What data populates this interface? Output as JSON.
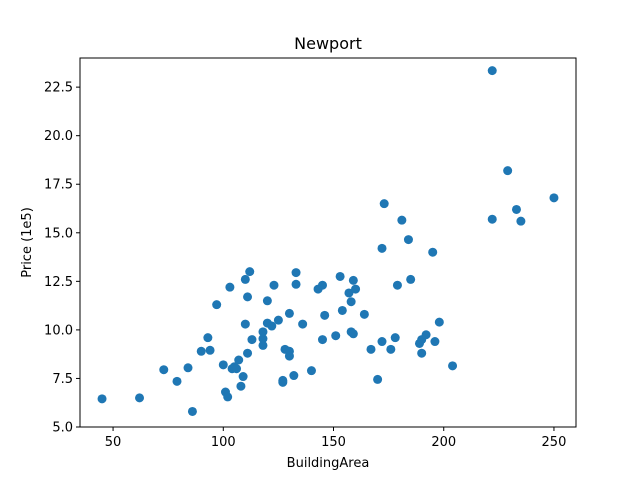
{
  "chart_data": {
    "type": "scatter",
    "title": "Newport",
    "xlabel": "BuildingArea",
    "ylabel": "Price (1e5)",
    "xlim": [
      35,
      260
    ],
    "ylim": [
      5.0,
      24.0
    ],
    "x_ticks": [
      50,
      100,
      150,
      200,
      250
    ],
    "x_tick_labels": [
      "50",
      "100",
      "150",
      "200",
      "250"
    ],
    "y_ticks": [
      5.0,
      7.5,
      10.0,
      12.5,
      15.0,
      17.5,
      20.0,
      22.5
    ],
    "y_tick_labels": [
      "5.0",
      "7.5",
      "10.0",
      "12.5",
      "15.0",
      "17.5",
      "20.0",
      "22.5"
    ],
    "grid": false,
    "marker_color": "#1f77b4",
    "series": [
      {
        "points": [
          [
            45,
            6.45
          ],
          [
            62,
            6.5
          ],
          [
            73,
            7.95
          ],
          [
            79,
            7.35
          ],
          [
            84,
            8.05
          ],
          [
            86,
            5.8
          ],
          [
            90,
            8.9
          ],
          [
            93,
            9.6
          ],
          [
            94,
            8.95
          ],
          [
            97,
            11.3
          ],
          [
            100,
            8.2
          ],
          [
            101,
            6.8
          ],
          [
            102,
            6.55
          ],
          [
            103,
            12.2
          ],
          [
            104,
            8.0
          ],
          [
            105,
            8.1
          ],
          [
            106,
            8.0
          ],
          [
            107,
            8.45
          ],
          [
            108,
            7.1
          ],
          [
            109,
            7.6
          ],
          [
            110,
            10.3
          ],
          [
            110,
            12.6
          ],
          [
            111,
            11.7
          ],
          [
            111,
            8.8
          ],
          [
            112,
            13.0
          ],
          [
            113,
            9.5
          ],
          [
            118,
            9.2
          ],
          [
            118,
            9.55
          ],
          [
            118,
            9.9
          ],
          [
            120,
            10.35
          ],
          [
            120,
            11.5
          ],
          [
            122,
            10.2
          ],
          [
            123,
            12.3
          ],
          [
            125,
            10.5
          ],
          [
            127,
            7.3
          ],
          [
            127,
            7.4
          ],
          [
            128,
            9.0
          ],
          [
            130,
            8.9
          ],
          [
            130,
            8.65
          ],
          [
            130,
            10.85
          ],
          [
            132,
            7.65
          ],
          [
            133,
            12.95
          ],
          [
            133,
            12.35
          ],
          [
            136,
            10.3
          ],
          [
            140,
            7.9
          ],
          [
            143,
            12.1
          ],
          [
            145,
            12.3
          ],
          [
            145,
            9.5
          ],
          [
            146,
            10.75
          ],
          [
            151,
            9.7
          ],
          [
            153,
            12.75
          ],
          [
            154,
            11.0
          ],
          [
            157,
            11.9
          ],
          [
            158,
            9.9
          ],
          [
            158,
            11.45
          ],
          [
            159,
            12.55
          ],
          [
            159,
            9.8
          ],
          [
            160,
            12.1
          ],
          [
            164,
            10.8
          ],
          [
            167,
            9.0
          ],
          [
            170,
            7.45
          ],
          [
            172,
            9.4
          ],
          [
            172,
            14.2
          ],
          [
            173,
            16.5
          ],
          [
            176,
            9.0
          ],
          [
            178,
            9.6
          ],
          [
            179,
            12.3
          ],
          [
            181,
            15.65
          ],
          [
            184,
            14.65
          ],
          [
            185,
            12.6
          ],
          [
            189,
            9.3
          ],
          [
            190,
            8.8
          ],
          [
            190,
            9.5
          ],
          [
            192,
            9.75
          ],
          [
            195,
            14.0
          ],
          [
            196,
            9.4
          ],
          [
            198,
            10.4
          ],
          [
            204,
            8.15
          ],
          [
            222,
            23.35
          ],
          [
            222,
            15.7
          ],
          [
            229,
            18.2
          ],
          [
            233,
            16.2
          ],
          [
            235,
            15.6
          ],
          [
            250,
            16.8
          ]
        ]
      }
    ]
  }
}
